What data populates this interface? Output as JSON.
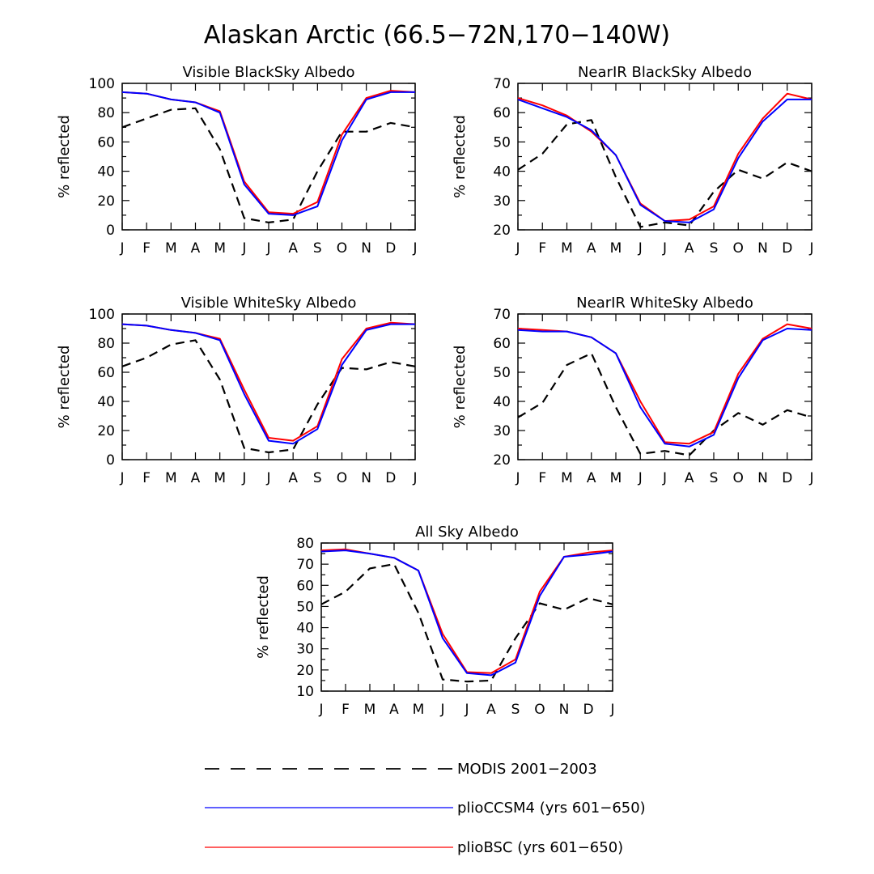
{
  "title": "Alaskan Arctic (66.5−72N,170−140W)",
  "legend": [
    {
      "key": "modis",
      "label": "MODIS 2001−2003",
      "color": "#000000",
      "dash": "dashed"
    },
    {
      "key": "ccsm4",
      "label": "plioCCSM4 (yrs 601−650)",
      "color": "#0000ff",
      "dash": "solid"
    },
    {
      "key": "bsc",
      "label": "plioBSC (yrs 601−650)",
      "color": "#ff0000",
      "dash": "solid"
    }
  ],
  "chart_data": [
    {
      "type": "line",
      "title": "Visible BlackSky Albedo",
      "ylabel": "% reflected",
      "categories": [
        "J",
        "F",
        "M",
        "A",
        "M",
        "J",
        "J",
        "A",
        "S",
        "O",
        "N",
        "D",
        "J"
      ],
      "ylim": [
        0,
        100
      ],
      "yticks": [
        0,
        20,
        40,
        60,
        80,
        100
      ],
      "series": [
        {
          "key": "modis",
          "values": [
            70,
            76,
            82,
            83,
            55,
            8,
            5,
            7,
            40,
            67,
            67,
            73,
            70
          ]
        },
        {
          "key": "bsc",
          "values": [
            94,
            93,
            89,
            87,
            81,
            33,
            12,
            11,
            19,
            65,
            90,
            95,
            94
          ]
        },
        {
          "key": "ccsm4",
          "values": [
            94,
            93,
            89,
            87,
            80,
            31,
            11,
            10,
            16,
            61,
            89,
            94,
            94
          ]
        }
      ]
    },
    {
      "type": "line",
      "title": "NearIR BlackSky Albedo",
      "ylabel": "% reflected",
      "categories": [
        "J",
        "F",
        "M",
        "A",
        "M",
        "J",
        "J",
        "A",
        "S",
        "O",
        "N",
        "D",
        "J"
      ],
      "ylim": [
        20,
        70
      ],
      "yticks": [
        20,
        30,
        40,
        50,
        60,
        70
      ],
      "series": [
        {
          "key": "modis",
          "values": [
            40.5,
            46,
            56,
            57.5,
            38,
            21,
            22.5,
            21.5,
            33,
            40.5,
            37.5,
            43,
            40
          ]
        },
        {
          "key": "bsc",
          "values": [
            65,
            62.5,
            59,
            53.5,
            45.5,
            29,
            23,
            23.5,
            28,
            46,
            58,
            66.5,
            64.5
          ]
        },
        {
          "key": "ccsm4",
          "values": [
            64.5,
            61.5,
            58.5,
            54,
            45.5,
            28.5,
            23,
            22.5,
            27,
            44.5,
            57,
            64.5,
            64.5
          ]
        }
      ]
    },
    {
      "type": "line",
      "title": "Visible WhiteSky Albedo",
      "ylabel": "% reflected",
      "categories": [
        "J",
        "F",
        "M",
        "A",
        "M",
        "J",
        "J",
        "A",
        "S",
        "O",
        "N",
        "D",
        "J"
      ],
      "ylim": [
        0,
        100
      ],
      "yticks": [
        0,
        20,
        40,
        60,
        80,
        100
      ],
      "series": [
        {
          "key": "modis",
          "values": [
            64,
            70,
            79,
            82,
            55,
            8,
            5,
            7,
            38,
            63,
            62,
            67,
            64
          ]
        },
        {
          "key": "bsc",
          "values": [
            93,
            92,
            89,
            87,
            83,
            48,
            15,
            13,
            23,
            69,
            90,
            94,
            93
          ]
        },
        {
          "key": "ccsm4",
          "values": [
            93,
            92,
            89,
            87,
            82,
            45,
            13,
            11,
            21,
            65,
            89,
            93,
            93
          ]
        }
      ]
    },
    {
      "type": "line",
      "title": "NearIR WhiteSky Albedo",
      "ylabel": "% reflected",
      "categories": [
        "J",
        "F",
        "M",
        "A",
        "M",
        "J",
        "J",
        "A",
        "S",
        "O",
        "N",
        "D",
        "J"
      ],
      "ylim": [
        20,
        70
      ],
      "yticks": [
        20,
        30,
        40,
        50,
        60,
        70
      ],
      "series": [
        {
          "key": "modis",
          "values": [
            34.5,
            39.5,
            52.5,
            56.5,
            38,
            22,
            23,
            21.5,
            30,
            36,
            32,
            37,
            34.5
          ]
        },
        {
          "key": "bsc",
          "values": [
            65,
            64.5,
            64,
            62,
            56.5,
            40,
            26,
            25.5,
            29.5,
            49.5,
            61.5,
            66.5,
            65
          ]
        },
        {
          "key": "ccsm4",
          "values": [
            64.5,
            64,
            64,
            62,
            56.5,
            38,
            25.5,
            24.5,
            28.5,
            48,
            61,
            65,
            64.5
          ]
        }
      ]
    },
    {
      "type": "line",
      "title": "All Sky Albedo",
      "ylabel": "% reflected",
      "categories": [
        "J",
        "F",
        "M",
        "A",
        "M",
        "J",
        "J",
        "A",
        "S",
        "O",
        "N",
        "D",
        "J"
      ],
      "ylim": [
        10,
        80
      ],
      "yticks": [
        10,
        20,
        30,
        40,
        50,
        60,
        70,
        80
      ],
      "series": [
        {
          "key": "modis",
          "values": [
            51,
            57,
            68,
            70,
            47,
            15.5,
            14.5,
            15,
            35,
            51.5,
            48.5,
            54,
            51
          ]
        },
        {
          "key": "bsc",
          "values": [
            76.5,
            77,
            75,
            73,
            67,
            37,
            19,
            18.5,
            25,
            57,
            73.5,
            75.5,
            76.5
          ]
        },
        {
          "key": "ccsm4",
          "values": [
            76,
            76.5,
            75,
            73,
            67,
            35,
            18.5,
            17.5,
            23.5,
            55,
            73.5,
            74.5,
            76
          ]
        }
      ]
    }
  ]
}
